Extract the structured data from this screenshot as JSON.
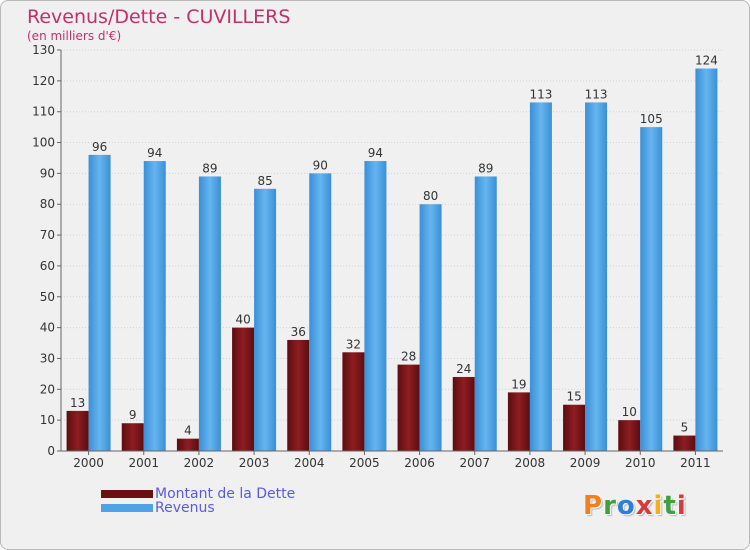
{
  "header": {
    "title": "Revenus/Dette - CUVILLERS",
    "subtitle": "(en milliers d'€)"
  },
  "chart_data": {
    "type": "bar",
    "title": "Revenus/Dette - CUVILLERS",
    "subtitle": "(en milliers d'€)",
    "xlabel": "",
    "ylabel": "",
    "ylim": [
      0,
      130
    ],
    "yticks": [
      0,
      10,
      20,
      30,
      40,
      50,
      60,
      70,
      80,
      90,
      100,
      110,
      120,
      130
    ],
    "grid": true,
    "legend_position": "bottom-left",
    "categories": [
      "2000",
      "2001",
      "2002",
      "2003",
      "2004",
      "2005",
      "2006",
      "2007",
      "2008",
      "2009",
      "2010",
      "2011"
    ],
    "series": [
      {
        "name": "Montant de la Dette",
        "color": "#7a1418",
        "values": [
          13,
          9,
          4,
          40,
          36,
          32,
          28,
          24,
          19,
          15,
          10,
          5
        ]
      },
      {
        "name": "Revenus",
        "color": "#4da3e6",
        "values": [
          96,
          94,
          89,
          85,
          90,
          94,
          80,
          89,
          113,
          113,
          105,
          124
        ]
      }
    ]
  },
  "legend": {
    "items": [
      {
        "label": "Montant de la Dette",
        "color": "#6b0f12"
      },
      {
        "label": "Revenus",
        "color": "#4da3e6"
      }
    ]
  },
  "logo": {
    "letters": [
      "P",
      "r",
      "o",
      "x",
      "i",
      "t",
      "i"
    ],
    "colors": [
      "#f08020",
      "#3fa040",
      "#2f7fd6",
      "#d43c3c",
      "#f0b020",
      "#3fa040",
      "#d43c3c"
    ]
  }
}
